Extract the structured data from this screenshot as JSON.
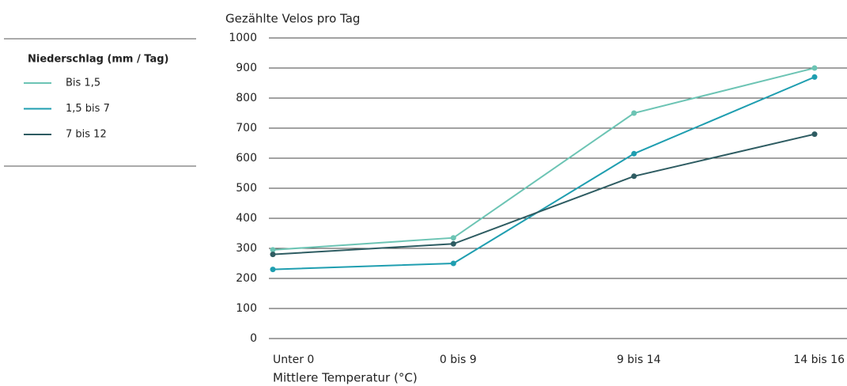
{
  "chart_data": {
    "type": "line",
    "y_axis_title": "Gezählte Velos pro Tag",
    "x_axis_title": "Mittlere Temperatur (°C)",
    "legend_title": "Niederschlag (mm / Tag)",
    "legend_position": "left",
    "categories": [
      "Unter 0",
      "0 bis 9",
      "9 bis 14",
      "14 bis 16"
    ],
    "series": [
      {
        "name": "Bis 1,5",
        "color": "#6cc4b4",
        "values": [
          295,
          335,
          750,
          900
        ]
      },
      {
        "name": "1,5 bis 7",
        "color": "#1f9eb0",
        "values": [
          230,
          250,
          615,
          870
        ]
      },
      {
        "name": "7 bis 12",
        "color": "#2e5c62",
        "values": [
          280,
          315,
          540,
          680
        ]
      }
    ],
    "ylim": [
      0,
      1000
    ],
    "yticks": [
      0,
      100,
      200,
      300,
      400,
      500,
      600,
      700,
      800,
      900,
      1000
    ],
    "grid": true
  }
}
